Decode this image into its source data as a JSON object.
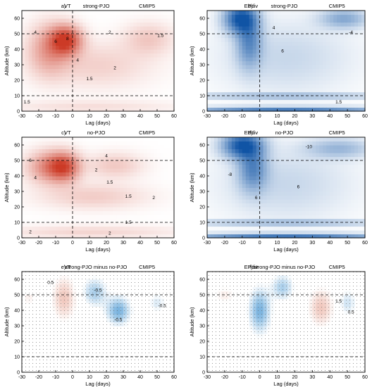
{
  "chart_data": [
    {
      "type": "heatmap",
      "panel": "a)",
      "variable": "VT",
      "case": "strong-PJO",
      "model": "CMIP5",
      "palette": "red",
      "sign": "positive",
      "xlabel": "Lag (days)",
      "ylabel": "Altitude (km)",
      "xlim": [
        -30,
        60
      ],
      "ylim": [
        0,
        65
      ],
      "xticks": [
        -30,
        -20,
        -10,
        0,
        10,
        20,
        30,
        40,
        50,
        60
      ],
      "yticks": [
        0,
        10,
        20,
        30,
        40,
        50,
        60
      ],
      "ref_lines": {
        "x": [
          0
        ],
        "y": [
          10,
          50
        ]
      },
      "contour_labels": [
        {
          "text": "8",
          "x": -3,
          "y": 46
        },
        {
          "text": "6",
          "x": -10,
          "y": 44
        },
        {
          "text": "4",
          "x": -22,
          "y": 50
        },
        {
          "text": "4",
          "x": 3,
          "y": 32
        },
        {
          "text": "2",
          "x": 22,
          "y": 50
        },
        {
          "text": "1.5",
          "x": 52,
          "y": 48
        },
        {
          "text": "2",
          "x": 25,
          "y": 27
        },
        {
          "text": "1.5",
          "x": 10,
          "y": 20
        },
        {
          "text": "1.5",
          "x": -27,
          "y": 5
        }
      ]
    },
    {
      "type": "heatmap",
      "panel": "b)",
      "variable": "EPdiv",
      "case": "strong-PJO",
      "model": "CMIP5",
      "palette": "blue",
      "sign": "negative",
      "xlabel": "Lag (days)",
      "ylabel": "Altitude (km)",
      "xlim": [
        -30,
        60
      ],
      "ylim": [
        0,
        65
      ],
      "xticks": [
        -30,
        -20,
        -10,
        0,
        10,
        20,
        30,
        40,
        50,
        60
      ],
      "yticks": [
        0,
        10,
        20,
        30,
        40,
        50,
        60
      ],
      "ref_lines": {
        "x": [
          0
        ],
        "y": [
          10,
          50
        ]
      },
      "contour_labels": [
        {
          "text": "4",
          "x": 8,
          "y": 53
        },
        {
          "text": "-4",
          "x": 52,
          "y": 50
        },
        {
          "text": "6",
          "x": 13,
          "y": 38
        },
        {
          "text": "1.5",
          "x": 45,
          "y": 5
        }
      ]
    },
    {
      "type": "heatmap",
      "panel": "c)",
      "variable": "VT",
      "case": "no-PJO",
      "model": "CMIP5",
      "palette": "red",
      "sign": "positive",
      "xlabel": "Lag (days)",
      "ylabel": "Altitude (km)",
      "xlim": [
        -30,
        60
      ],
      "ylim": [
        0,
        65
      ],
      "xticks": [
        -30,
        -20,
        -10,
        0,
        10,
        20,
        30,
        40,
        50,
        60
      ],
      "yticks": [
        0,
        10,
        20,
        30,
        40,
        50,
        60
      ],
      "ref_lines": {
        "x": [
          0
        ],
        "y": [
          10,
          50
        ]
      },
      "contour_labels": [
        {
          "text": "4",
          "x": 20,
          "y": 52
        },
        {
          "text": "2",
          "x": 14,
          "y": 43
        },
        {
          "text": "1.5",
          "x": 22,
          "y": 35
        },
        {
          "text": "6",
          "x": -25,
          "y": 49
        },
        {
          "text": "4",
          "x": -22,
          "y": 38
        },
        {
          "text": "1.5",
          "x": 33,
          "y": 26
        },
        {
          "text": "2",
          "x": 48,
          "y": 25
        },
        {
          "text": "2",
          "x": -25,
          "y": 3
        },
        {
          "text": "2",
          "x": 22,
          "y": 2
        },
        {
          "text": "1.5",
          "x": 33,
          "y": 9
        }
      ]
    },
    {
      "type": "heatmap",
      "panel": "d)",
      "variable": "EPdiv",
      "case": "no-PJO",
      "model": "CMIP5",
      "palette": "blue",
      "sign": "negative",
      "xlabel": "Lag (days)",
      "ylabel": "Altitude (km)",
      "xlim": [
        -30,
        60
      ],
      "ylim": [
        0,
        65
      ],
      "xticks": [
        -30,
        -20,
        -10,
        0,
        10,
        20,
        30,
        40,
        50,
        60
      ],
      "yticks": [
        0,
        10,
        20,
        30,
        40,
        50,
        60
      ],
      "ref_lines": {
        "x": [
          0
        ],
        "y": [
          10,
          50
        ]
      },
      "contour_labels": [
        {
          "text": "-10",
          "x": 28,
          "y": 58
        },
        {
          "text": "-8",
          "x": -17,
          "y": 40
        },
        {
          "text": "6",
          "x": 22,
          "y": 32
        },
        {
          "text": "6",
          "x": -2,
          "y": 25
        }
      ]
    },
    {
      "type": "heatmap",
      "panel": "e)",
      "variable": "VT",
      "case": "strong-PJO minus no-PJO",
      "model": "CMIP5",
      "palette": "diverging",
      "stippled": true,
      "xlabel": "Lag (days)",
      "ylabel": "Altitude (km)",
      "xlim": [
        -30,
        60
      ],
      "ylim": [
        0,
        65
      ],
      "xticks": [
        -30,
        -20,
        -10,
        0,
        10,
        20,
        30,
        40,
        50,
        60
      ],
      "yticks": [
        0,
        10,
        20,
        30,
        40,
        50,
        60
      ],
      "ref_lines": {
        "x": [],
        "y": [
          10,
          50
        ]
      },
      "contour_labels": [
        {
          "text": "0.5",
          "x": -13,
          "y": 57
        },
        {
          "text": "-0.5",
          "x": 15,
          "y": 52
        },
        {
          "text": "-0.5",
          "x": 53,
          "y": 42
        },
        {
          "text": "-0.5",
          "x": 27,
          "y": 33
        }
      ]
    },
    {
      "type": "heatmap",
      "panel": "f)",
      "variable": "EPdiv",
      "case": "strong-PJO minus no-PJO",
      "model": "CMIP5",
      "palette": "diverging",
      "stippled": true,
      "xlabel": "Lag (days)",
      "ylabel": "Altitude (km)",
      "xlim": [
        -30,
        60
      ],
      "ylim": [
        0,
        65
      ],
      "xticks": [
        -30,
        -20,
        -10,
        0,
        10,
        20,
        30,
        40,
        50,
        60
      ],
      "yticks": [
        0,
        10,
        20,
        30,
        40,
        50,
        60
      ],
      "ref_lines": {
        "x": [],
        "y": [
          10,
          50
        ]
      },
      "contour_labels": [
        {
          "text": "1.5",
          "x": 45,
          "y": 45
        },
        {
          "text": "0.5",
          "x": 52,
          "y": 38
        }
      ]
    }
  ]
}
